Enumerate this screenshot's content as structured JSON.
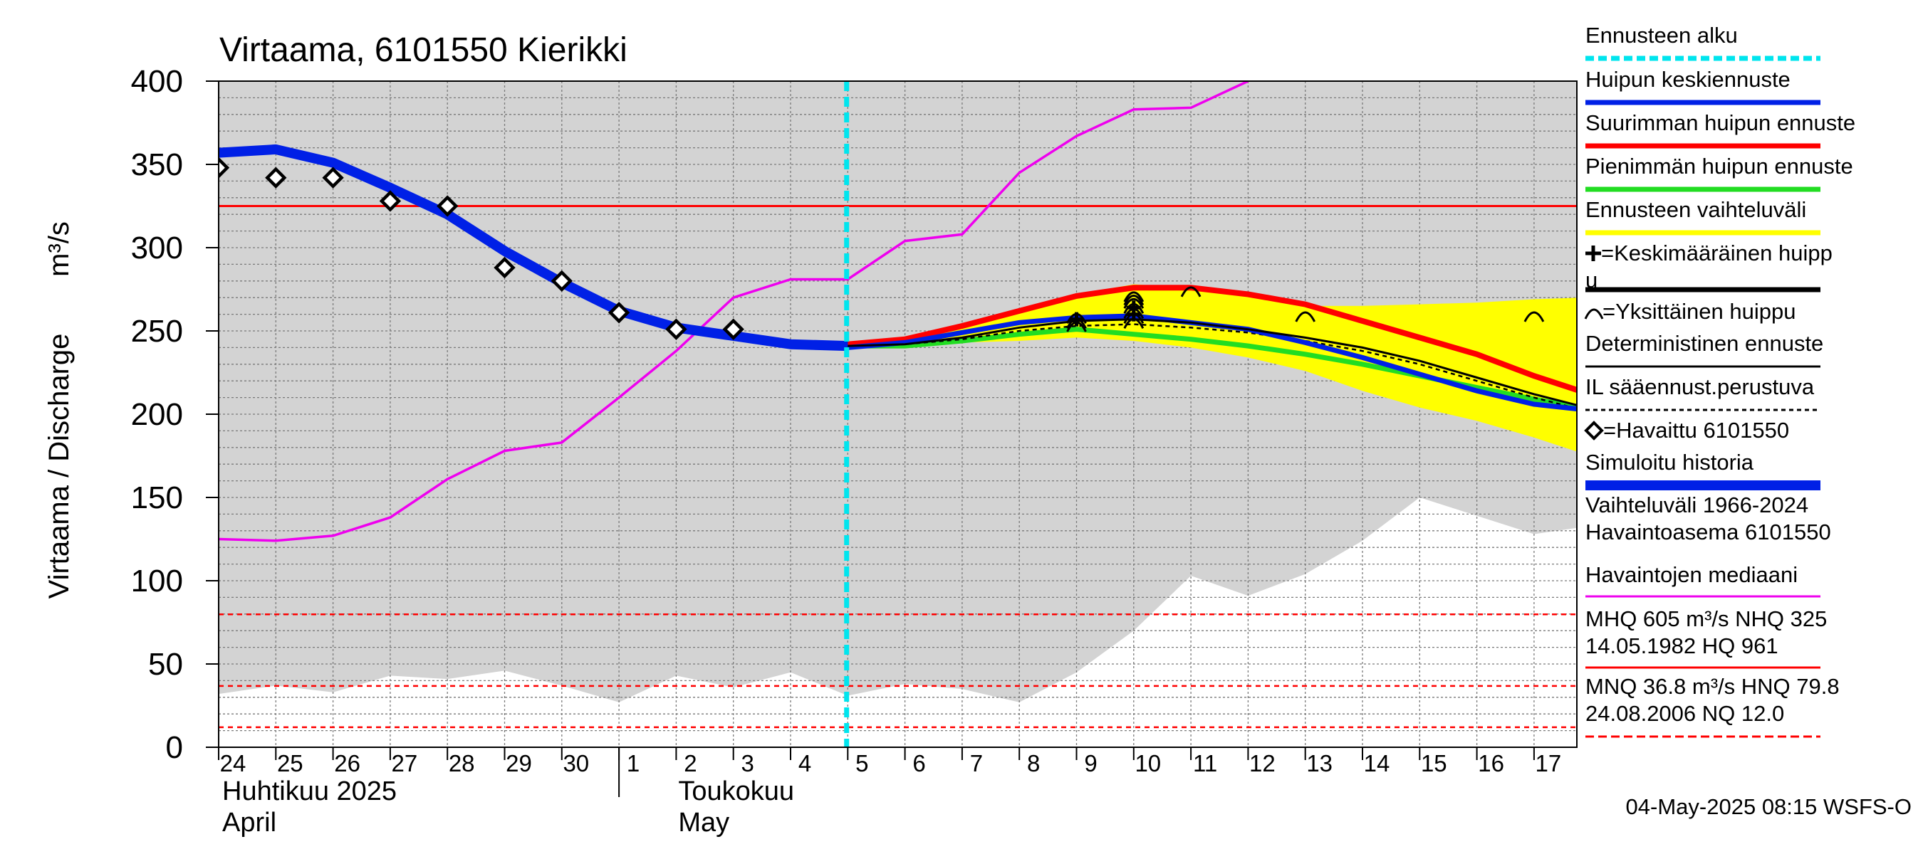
{
  "chart_data": {
    "type": "line",
    "title": "Virtaama, 6101550 Kierikki",
    "ylabel": "Virtaama / Discharge",
    "yunit": "m³/s",
    "ylim": [
      0,
      400
    ],
    "yticks": [
      0,
      50,
      100,
      150,
      200,
      250,
      300,
      350,
      400
    ],
    "x_day_labels": [
      "24",
      "25",
      "26",
      "27",
      "28",
      "29",
      "30",
      "1",
      "2",
      "3",
      "4",
      "5",
      "6",
      "7",
      "8",
      "9",
      "10",
      "11",
      "12",
      "13",
      "14",
      "15",
      "16",
      "17"
    ],
    "month_labels": [
      {
        "fi": "Huhtikuu  2025",
        "en": "April"
      },
      {
        "fi": "Toukokuu",
        "en": "May"
      }
    ],
    "forecast_start_day": 10.98,
    "range_1966_2024": {
      "x": [
        0,
        1,
        2,
        3,
        4,
        5,
        6,
        7,
        8,
        9,
        10,
        11,
        12,
        13,
        14,
        15,
        16,
        17,
        18,
        19,
        20,
        21,
        22,
        23,
        23.8
      ],
      "lo": [
        32,
        37,
        33,
        43,
        41,
        46,
        37,
        27,
        43,
        36,
        45,
        31,
        38,
        35,
        27,
        45,
        70,
        103,
        91,
        104,
        124,
        150,
        139,
        128,
        132
      ]
    },
    "median": {
      "x": [
        0,
        1,
        2,
        3,
        4,
        5,
        6,
        7,
        8,
        9,
        10,
        11,
        12,
        13,
        14,
        15,
        16,
        17,
        18
      ],
      "y": [
        125,
        124,
        127,
        138,
        161,
        178,
        183,
        210,
        238,
        270,
        281,
        281,
        304,
        308,
        345,
        367,
        383,
        384,
        400
      ]
    },
    "simulated_history": {
      "x": [
        0,
        1,
        2,
        3,
        4,
        5,
        6,
        7,
        8,
        9,
        10,
        11
      ],
      "y": [
        357,
        359,
        351,
        336,
        320,
        298,
        279,
        262,
        252,
        247,
        242,
        241
      ]
    },
    "observed": {
      "x": [
        0,
        1,
        2,
        3,
        4,
        5,
        6,
        7,
        8,
        9
      ],
      "y": [
        348,
        342,
        342,
        328,
        325,
        288,
        280,
        261,
        251,
        251
      ]
    },
    "forecast_band": {
      "x": [
        11,
        12,
        13,
        14,
        15,
        16,
        17,
        18,
        19,
        20,
        21,
        22,
        23,
        23.8
      ],
      "lo": [
        240,
        241,
        243,
        244,
        246,
        244,
        240,
        234,
        226,
        214,
        204,
        196,
        186,
        177
      ],
      "hi": [
        241,
        245,
        254,
        263,
        272,
        278,
        276,
        272,
        265,
        265,
        266,
        267,
        269,
        270
      ]
    },
    "max_peak_forecast": {
      "x": [
        10,
        11,
        12,
        13,
        14,
        15,
        16,
        17,
        18,
        19,
        20,
        21,
        22,
        23,
        23.8
      ],
      "y": [
        242,
        242,
        245,
        253,
        262,
        271,
        276,
        276,
        272,
        266,
        256,
        246,
        236,
        223,
        214
      ]
    },
    "min_peak_forecast": {
      "x": [
        10,
        11,
        12,
        13,
        14,
        15,
        16,
        17,
        18,
        19,
        20,
        21,
        22,
        23,
        23.8
      ],
      "y": [
        242,
        241,
        241,
        244,
        248,
        251,
        248,
        245,
        241,
        236,
        230,
        223,
        216,
        209,
        204
      ]
    },
    "mean_peak_forecast": {
      "x": [
        10,
        11,
        12,
        13,
        14,
        15,
        16,
        17,
        18,
        19,
        20,
        21,
        22,
        23,
        23.8
      ],
      "y": [
        242,
        240,
        243,
        249,
        255,
        258,
        259,
        255,
        251,
        243,
        234,
        224,
        214,
        206,
        203
      ]
    },
    "deterministic": {
      "x": [
        10,
        11,
        12,
        13,
        14,
        15,
        16,
        17,
        18,
        19,
        20,
        21,
        22,
        23,
        23.8
      ],
      "y": [
        242,
        241,
        242,
        246,
        252,
        256,
        257,
        255,
        251,
        246,
        240,
        232,
        222,
        212,
        205
      ]
    },
    "il_weather_forecast": {
      "x": [
        10,
        11,
        12,
        13,
        14,
        15,
        16,
        17,
        18,
        19,
        20,
        21,
        22,
        23,
        23.8
      ],
      "y": [
        242,
        241,
        242,
        245,
        250,
        253,
        254,
        252,
        249,
        244,
        238,
        230,
        220,
        210,
        203
      ]
    },
    "mean_peaks": [
      {
        "x": 15,
        "y": 257
      },
      {
        "x": 16,
        "y": 260
      },
      {
        "x": 16,
        "y": 264
      }
    ],
    "individual_peaks": {
      "x": [
        15,
        15,
        15,
        16,
        16,
        16,
        16,
        16,
        16,
        16,
        17,
        19,
        23
      ],
      "y": [
        253,
        255,
        258,
        255,
        258,
        261,
        264,
        267,
        269,
        271,
        274,
        259,
        259
      ]
    },
    "NHQ": 325,
    "HNQ": 79.8,
    "MNQ": 36.8,
    "NQ": 12.0
  },
  "legend": [
    {
      "label": "Ennusteen alku",
      "color": "#00e5ee",
      "style": "dashed"
    },
    {
      "label": "Huipun keskiennuste",
      "color": "#0020e6",
      "style": "solid"
    },
    {
      "label": "Suurimman huipun ennuste",
      "color": "#ff0000",
      "style": "solid"
    },
    {
      "label": "Pienimmän huipun ennuste",
      "color": "#22dd22",
      "style": "solid"
    },
    {
      "label": "Ennusteen vaihteluväli",
      "color": "#ffff00",
      "style": "solid"
    },
    {
      "label": "=Keskimääräinen huipp",
      "label2": "u",
      "color": "#000000",
      "style": "none",
      "icon": "cross"
    },
    {
      "label": "=Yksittäinen huippu",
      "color": "#000000",
      "style": "none",
      "icon": "arc"
    },
    {
      "label": "Deterministinen ennuste",
      "color": "#000000",
      "style": "solid"
    },
    {
      "label": "IL sääennust.perustuva",
      "color": "#000000",
      "style": "dotted"
    },
    {
      "label": "=Havaittu 6101550",
      "color": "#000000",
      "style": "none",
      "icon": "diamond"
    },
    {
      "label": "Simuloitu historia",
      "color": "#0020e6",
      "style": "thick"
    },
    {
      "label": "Vaihteluväli 1966-2024",
      "label2": " Havaintoasema 6101550",
      "color": "#d3d3d3",
      "style": "thick"
    },
    {
      "label": "Havaintojen mediaani",
      "color": "#ee00ee",
      "style": "solid"
    },
    {
      "label": "MHQ  605 m³/s NHQ  325",
      "label2": "14.05.1982 HQ  961",
      "color": "#ff0000",
      "style": "solid"
    },
    {
      "label": "MNQ 36.8 m³/s HNQ 79.8",
      "label2": "24.08.2006 NQ 12.0",
      "color": "#ff0000",
      "style": "dashed"
    }
  ],
  "colors": {
    "grey_band": "#d3d3d3",
    "grid": "#7a7a7a",
    "forecast_start": "#00e5ee",
    "mean_forecast": "#0020e6",
    "max_forecast": "#ff0000",
    "min_forecast": "#22dd22",
    "range": "#ffff00",
    "median": "#ee00ee",
    "ref_line": "#ff0000"
  },
  "footer": "04-May-2025 08:15 WSFS-O"
}
